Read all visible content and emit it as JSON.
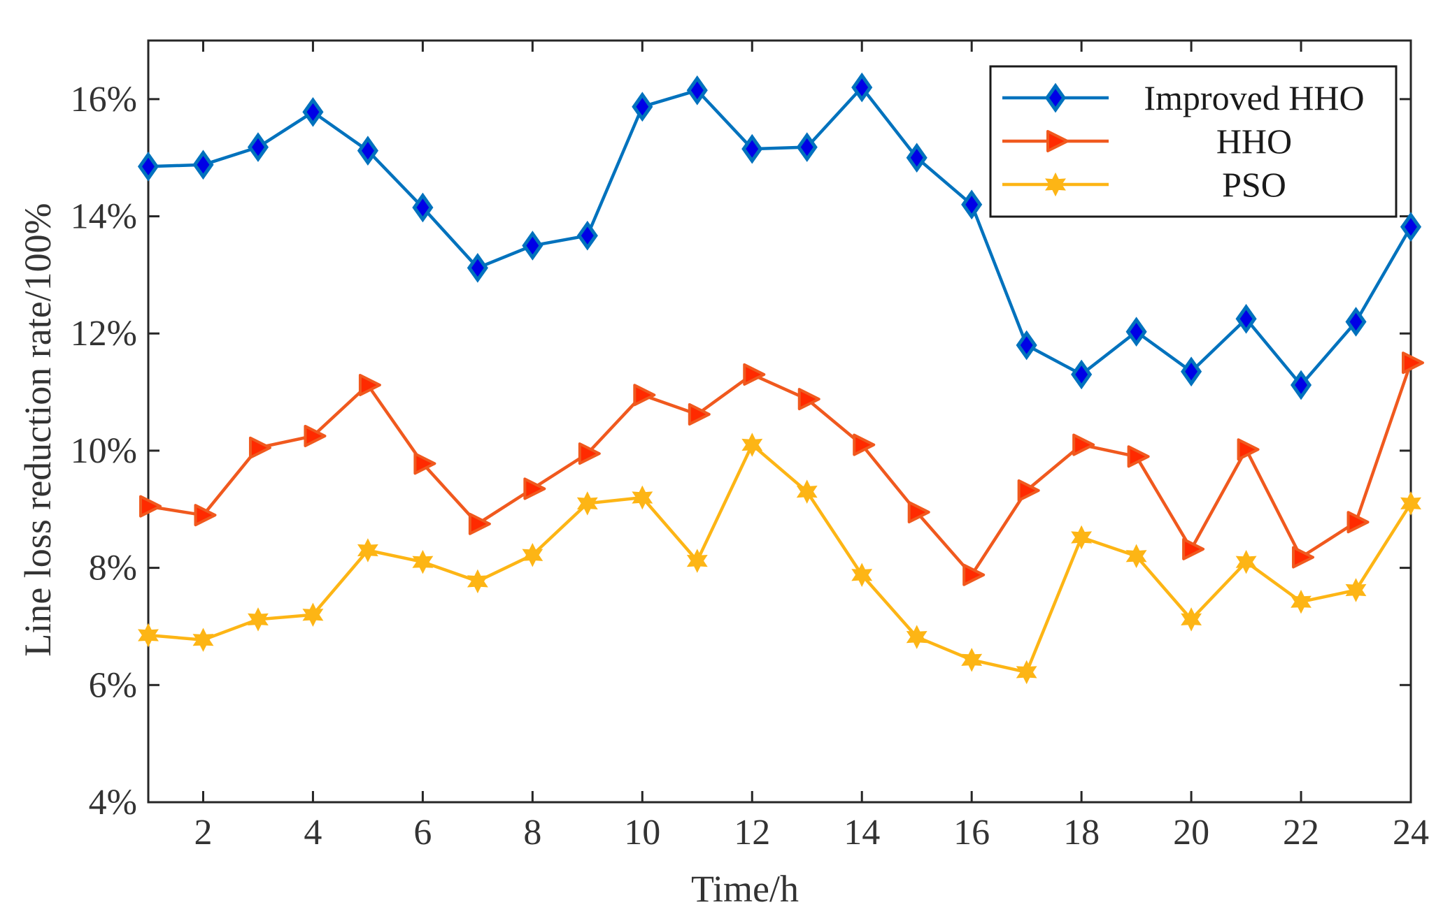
{
  "chart_data": {
    "type": "line",
    "title": "",
    "xlabel": "Time/h",
    "ylabel": "Line loss reduction rate/100%",
    "x": [
      1,
      2,
      3,
      4,
      5,
      6,
      7,
      8,
      9,
      10,
      11,
      12,
      13,
      14,
      15,
      16,
      17,
      18,
      19,
      20,
      21,
      22,
      23,
      24
    ],
    "xlim": [
      1,
      24
    ],
    "ylim": [
      4,
      17
    ],
    "xticks": [
      2,
      4,
      6,
      8,
      10,
      12,
      14,
      16,
      18,
      20,
      22,
      24
    ],
    "yticks": [
      4,
      6,
      8,
      10,
      12,
      14,
      16
    ],
    "xtick_labels": [
      "2",
      "4",
      "6",
      "8",
      "10",
      "12",
      "14",
      "16",
      "18",
      "20",
      "22",
      "24"
    ],
    "ytick_labels": [
      "4%",
      "6%",
      "8%",
      "10%",
      "12%",
      "14%",
      "16%"
    ],
    "grid": false,
    "legend_position": "top-right",
    "series": [
      {
        "name": "Improved HHO",
        "color": "#0072BD",
        "marker": "diamond",
        "values": [
          14.85,
          14.88,
          15.18,
          15.78,
          15.12,
          14.15,
          13.12,
          13.5,
          13.67,
          15.87,
          16.15,
          15.15,
          15.18,
          16.2,
          15.0,
          14.2,
          11.8,
          11.3,
          12.03,
          11.35,
          12.25,
          11.12,
          12.2,
          13.82
        ]
      },
      {
        "name": "HHO",
        "color": "#F0591E",
        "marker": "triangle-right",
        "values": [
          9.05,
          8.9,
          10.05,
          10.25,
          11.12,
          9.78,
          8.75,
          9.35,
          9.95,
          10.95,
          10.62,
          11.3,
          10.88,
          10.1,
          8.95,
          7.88,
          9.32,
          10.1,
          9.9,
          8.32,
          10.02,
          8.18,
          8.78,
          11.5
        ]
      },
      {
        "name": "PSO",
        "color": "#FDB515",
        "marker": "star",
        "values": [
          6.85,
          6.77,
          7.12,
          7.2,
          8.3,
          8.1,
          7.77,
          8.22,
          9.1,
          9.2,
          8.12,
          10.1,
          9.3,
          7.88,
          6.82,
          6.43,
          6.22,
          8.52,
          8.2,
          7.12,
          8.1,
          7.42,
          7.62,
          9.1
        ]
      }
    ]
  }
}
